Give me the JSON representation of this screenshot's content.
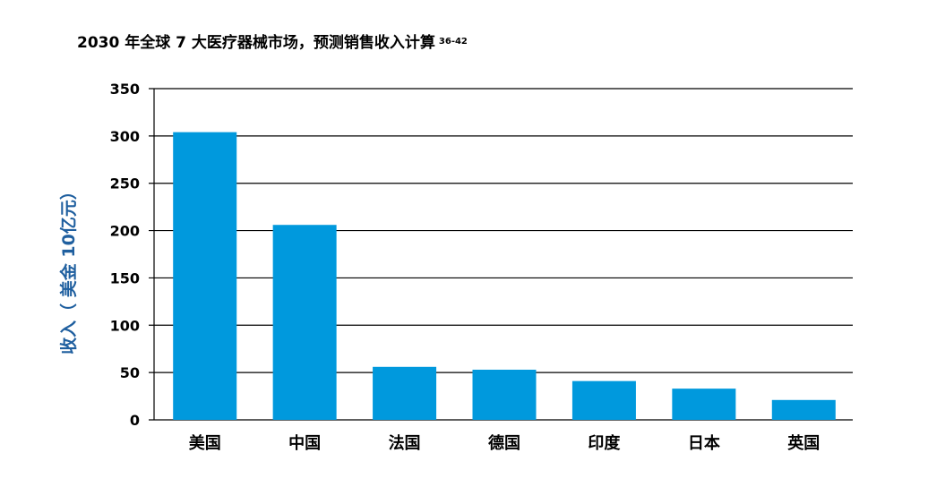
{
  "chart_data": {
    "type": "bar",
    "title": "2030 年全球 7 大医疗器械市场，预测销售收入计算",
    "title_superscript": "36-42",
    "ylabel": "收入（ 美金 10亿元）",
    "xlabel": "",
    "categories": [
      "美国",
      "中国",
      "法国",
      "德国",
      "印度",
      "日本",
      "英国"
    ],
    "values": [
      304,
      206,
      56,
      53,
      41,
      33,
      21
    ],
    "ylim": [
      0,
      350
    ],
    "yticks": [
      0,
      50,
      100,
      150,
      200,
      250,
      300,
      350
    ],
    "grid": true,
    "bar_color": "#0099dd",
    "ylabel_color": "#1f5f9f",
    "grid_color": "#000000"
  }
}
